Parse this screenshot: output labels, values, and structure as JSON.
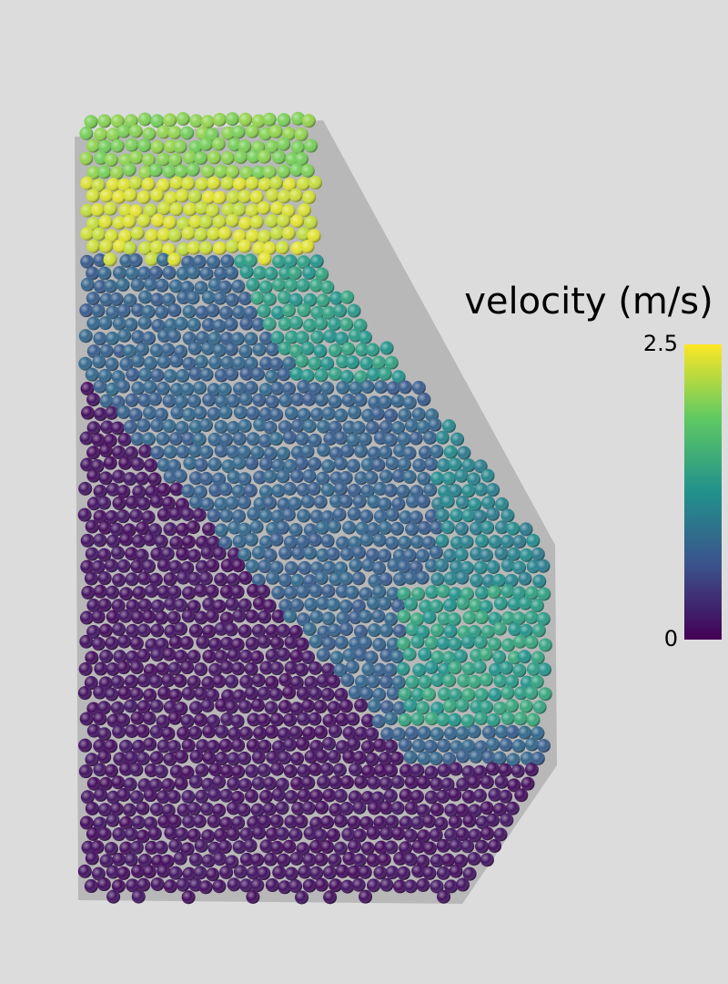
{
  "colorbar": {
    "title": "velocity (m/s)",
    "ticks": [
      0,
      2.5
    ]
  }
}
